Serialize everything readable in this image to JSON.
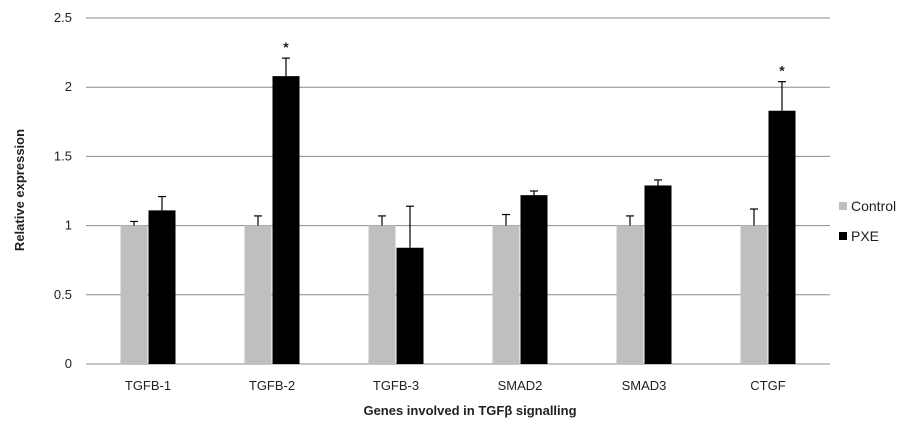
{
  "chart_data": {
    "type": "bar",
    "xlabel": "Genes involved  in TGFβ  signalling",
    "ylabel": "Relative expression",
    "ylim": [
      0,
      2.5
    ],
    "yticks": [
      "0",
      "0.5",
      "1",
      "1.5",
      "2",
      "2.5"
    ],
    "ytick_values": [
      0,
      0.5,
      1,
      1.5,
      2,
      2.5
    ],
    "grid": true,
    "legend_position": "right",
    "categories": [
      "TGFB-1",
      "TGFB-2",
      "TGFB-3",
      "SMAD2",
      "SMAD3",
      "CTGF"
    ],
    "series": [
      {
        "name": "Control",
        "color": "#bfbfbf",
        "values": [
          1.0,
          1.0,
          1.0,
          1.0,
          1.0,
          1.0
        ],
        "errors": [
          0.03,
          0.07,
          0.07,
          0.08,
          0.07,
          0.12
        ]
      },
      {
        "name": "PXE",
        "color": "#000000",
        "values": [
          1.11,
          2.08,
          0.84,
          1.22,
          1.29,
          1.83
        ],
        "errors": [
          0.1,
          0.13,
          0.3,
          0.03,
          0.04,
          0.21
        ]
      }
    ],
    "annotations": [
      {
        "category": "TGFB-2",
        "series": "PXE",
        "text": "*"
      },
      {
        "category": "CTGF",
        "series": "PXE",
        "text": "*"
      }
    ]
  }
}
